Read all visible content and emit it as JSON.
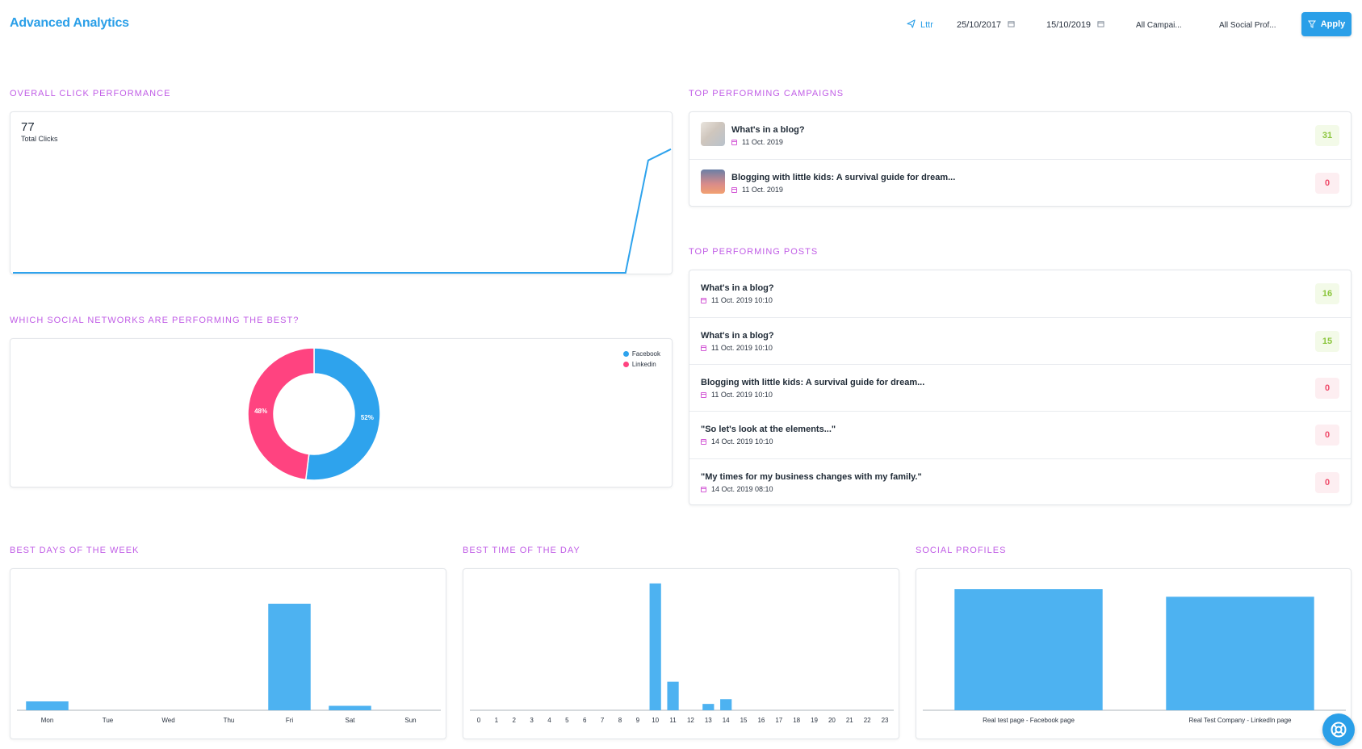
{
  "header": {
    "title": "Advanced Analytics",
    "project": "Lttr",
    "date_from": "25/10/2017",
    "date_to": "15/10/2019",
    "campaign_filter": "All Campai...",
    "profile_filter": "All Social Prof...",
    "apply_label": "Apply",
    "accent_color": "#2a9fe8"
  },
  "click_performance": {
    "title": "OVERALL CLICK PERFORMANCE",
    "total_value": "77",
    "total_label": "Total Clicks"
  },
  "networks": {
    "title": "WHICH SOCIAL NETWORKS ARE PERFORMING THE BEST?",
    "legend": [
      {
        "label": "Facebook",
        "color": "#2ea3ed"
      },
      {
        "label": "Linkedin",
        "color": "#ff4380"
      }
    ]
  },
  "campaigns": {
    "title": "TOP PERFORMING CAMPAIGNS",
    "items": [
      {
        "title": "What's in a blog?",
        "date": "11 Oct. 2019",
        "score": "31",
        "positive": true
      },
      {
        "title": "Blogging with little kids: A survival guide for dream...",
        "date": "11 Oct. 2019",
        "score": "0",
        "positive": false
      }
    ]
  },
  "posts": {
    "title": "TOP PERFORMING POSTS",
    "items": [
      {
        "title": "What's in a blog?",
        "date": "11 Oct. 2019 10:10",
        "score": "16",
        "positive": true
      },
      {
        "title": "What's in a blog?",
        "date": "11 Oct. 2019 10:10",
        "score": "15",
        "positive": true
      },
      {
        "title": "Blogging with little kids: A survival guide for dream...",
        "date": "11 Oct. 2019 10:10",
        "score": "0",
        "positive": false
      },
      {
        "title": "\"So let's look at the elements...\"",
        "date": "14 Oct. 2019 10:10",
        "score": "0",
        "positive": false
      },
      {
        "title": "\"My times for my business changes with my family.\"",
        "date": "14 Oct. 2019 08:10",
        "score": "0",
        "positive": false
      }
    ]
  },
  "days": {
    "title": "BEST DAYS OF THE WEEK"
  },
  "times": {
    "title": "BEST TIME OF THE DAY"
  },
  "profiles": {
    "title": "SOCIAL PROFILES"
  },
  "chart_data": [
    {
      "type": "line",
      "title": "OVERALL CLICK PERFORMANCE",
      "x": [
        0,
        1,
        2,
        3,
        4,
        5,
        6,
        7,
        8,
        9,
        10,
        11,
        12,
        13,
        14,
        15,
        16,
        17,
        18,
        19,
        20,
        21,
        22,
        23,
        24,
        25,
        26,
        27,
        28,
        29
      ],
      "values": [
        0,
        0,
        0,
        0,
        0,
        0,
        0,
        0,
        0,
        0,
        0,
        0,
        0,
        0,
        0,
        0,
        0,
        0,
        0,
        0,
        0,
        0,
        0,
        0,
        0,
        0,
        0,
        0,
        70,
        77
      ],
      "ylim": [
        0,
        95
      ],
      "color": "#2ea3ed"
    },
    {
      "type": "pie",
      "title": "WHICH SOCIAL NETWORKS ARE PERFORMING THE BEST?",
      "donut": true,
      "categories": [
        "Facebook",
        "Linkedin"
      ],
      "values": [
        52,
        48
      ],
      "labels": [
        "52%",
        "48%"
      ],
      "colors": [
        "#2ea3ed",
        "#ff4380"
      ],
      "legend": "top-right"
    },
    {
      "type": "bar",
      "title": "BEST DAYS OF THE WEEK",
      "categories": [
        "Mon",
        "Tue",
        "Wed",
        "Thu",
        "Fri",
        "Sat",
        "Sun"
      ],
      "values": [
        3,
        0,
        0,
        0,
        36,
        1.5,
        0
      ],
      "ylim": [
        0,
        45
      ],
      "color": "#4db2f1"
    },
    {
      "type": "bar",
      "title": "BEST TIME OF THE DAY",
      "categories": [
        "0",
        "1",
        "2",
        "3",
        "4",
        "5",
        "6",
        "7",
        "8",
        "9",
        "10",
        "11",
        "12",
        "13",
        "14",
        "15",
        "16",
        "17",
        "18",
        "19",
        "20",
        "21",
        "22",
        "23"
      ],
      "values": [
        0,
        0,
        0,
        0,
        0,
        0,
        0,
        0,
        0,
        0,
        40,
        9,
        0,
        2,
        3.5,
        0,
        0,
        0,
        0,
        0,
        0,
        0,
        0,
        0
      ],
      "ylim": [
        0,
        42
      ],
      "color": "#4db2f1"
    },
    {
      "type": "bar",
      "title": "SOCIAL PROFILES",
      "categories": [
        "Real test page - Facebook page",
        "Real Test Company - LinkedIn page"
      ],
      "values": [
        40,
        37.5
      ],
      "ylim": [
        0,
        44
      ],
      "color": "#4db2f1"
    }
  ]
}
